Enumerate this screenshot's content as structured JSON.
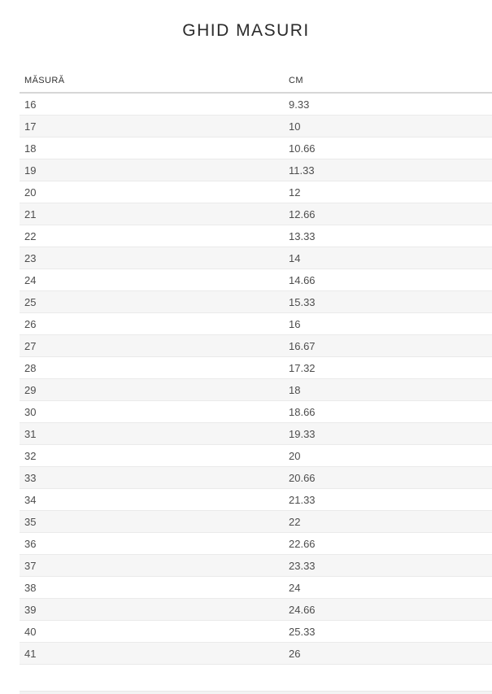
{
  "title": "GHID MASURI",
  "table": {
    "headers": [
      "MĂSURĂ",
      "CM"
    ],
    "rows": [
      {
        "size": "16",
        "cm": "9.33"
      },
      {
        "size": "17",
        "cm": "10"
      },
      {
        "size": "18",
        "cm": "10.66"
      },
      {
        "size": "19",
        "cm": "11.33"
      },
      {
        "size": "20",
        "cm": "12"
      },
      {
        "size": "21",
        "cm": "12.66"
      },
      {
        "size": "22",
        "cm": "13.33"
      },
      {
        "size": "23",
        "cm": "14"
      },
      {
        "size": "24",
        "cm": "14.66"
      },
      {
        "size": "25",
        "cm": "15.33"
      },
      {
        "size": "26",
        "cm": "16"
      },
      {
        "size": "27",
        "cm": "16.67"
      },
      {
        "size": "28",
        "cm": "17.32"
      },
      {
        "size": "29",
        "cm": "18"
      },
      {
        "size": "30",
        "cm": "18.66"
      },
      {
        "size": "31",
        "cm": "19.33"
      },
      {
        "size": "32",
        "cm": "20"
      },
      {
        "size": "33",
        "cm": "20.66"
      },
      {
        "size": "34",
        "cm": "21.33"
      },
      {
        "size": "35",
        "cm": "22"
      },
      {
        "size": "36",
        "cm": "22.66"
      },
      {
        "size": "37",
        "cm": "23.33"
      },
      {
        "size": "38",
        "cm": "24"
      },
      {
        "size": "39",
        "cm": "24.66"
      },
      {
        "size": "40",
        "cm": "25.33"
      },
      {
        "size": "41",
        "cm": "26"
      }
    ]
  },
  "theme": {
    "title_color": "#2b2b2b",
    "header_text_color": "#333333",
    "cell_text_color": "#4d4d4d",
    "stripe_color": "#f6f6f6",
    "row_border_color": "#eaeaea",
    "header_border_color": "#d6d6d6",
    "background_color": "#ffffff"
  }
}
